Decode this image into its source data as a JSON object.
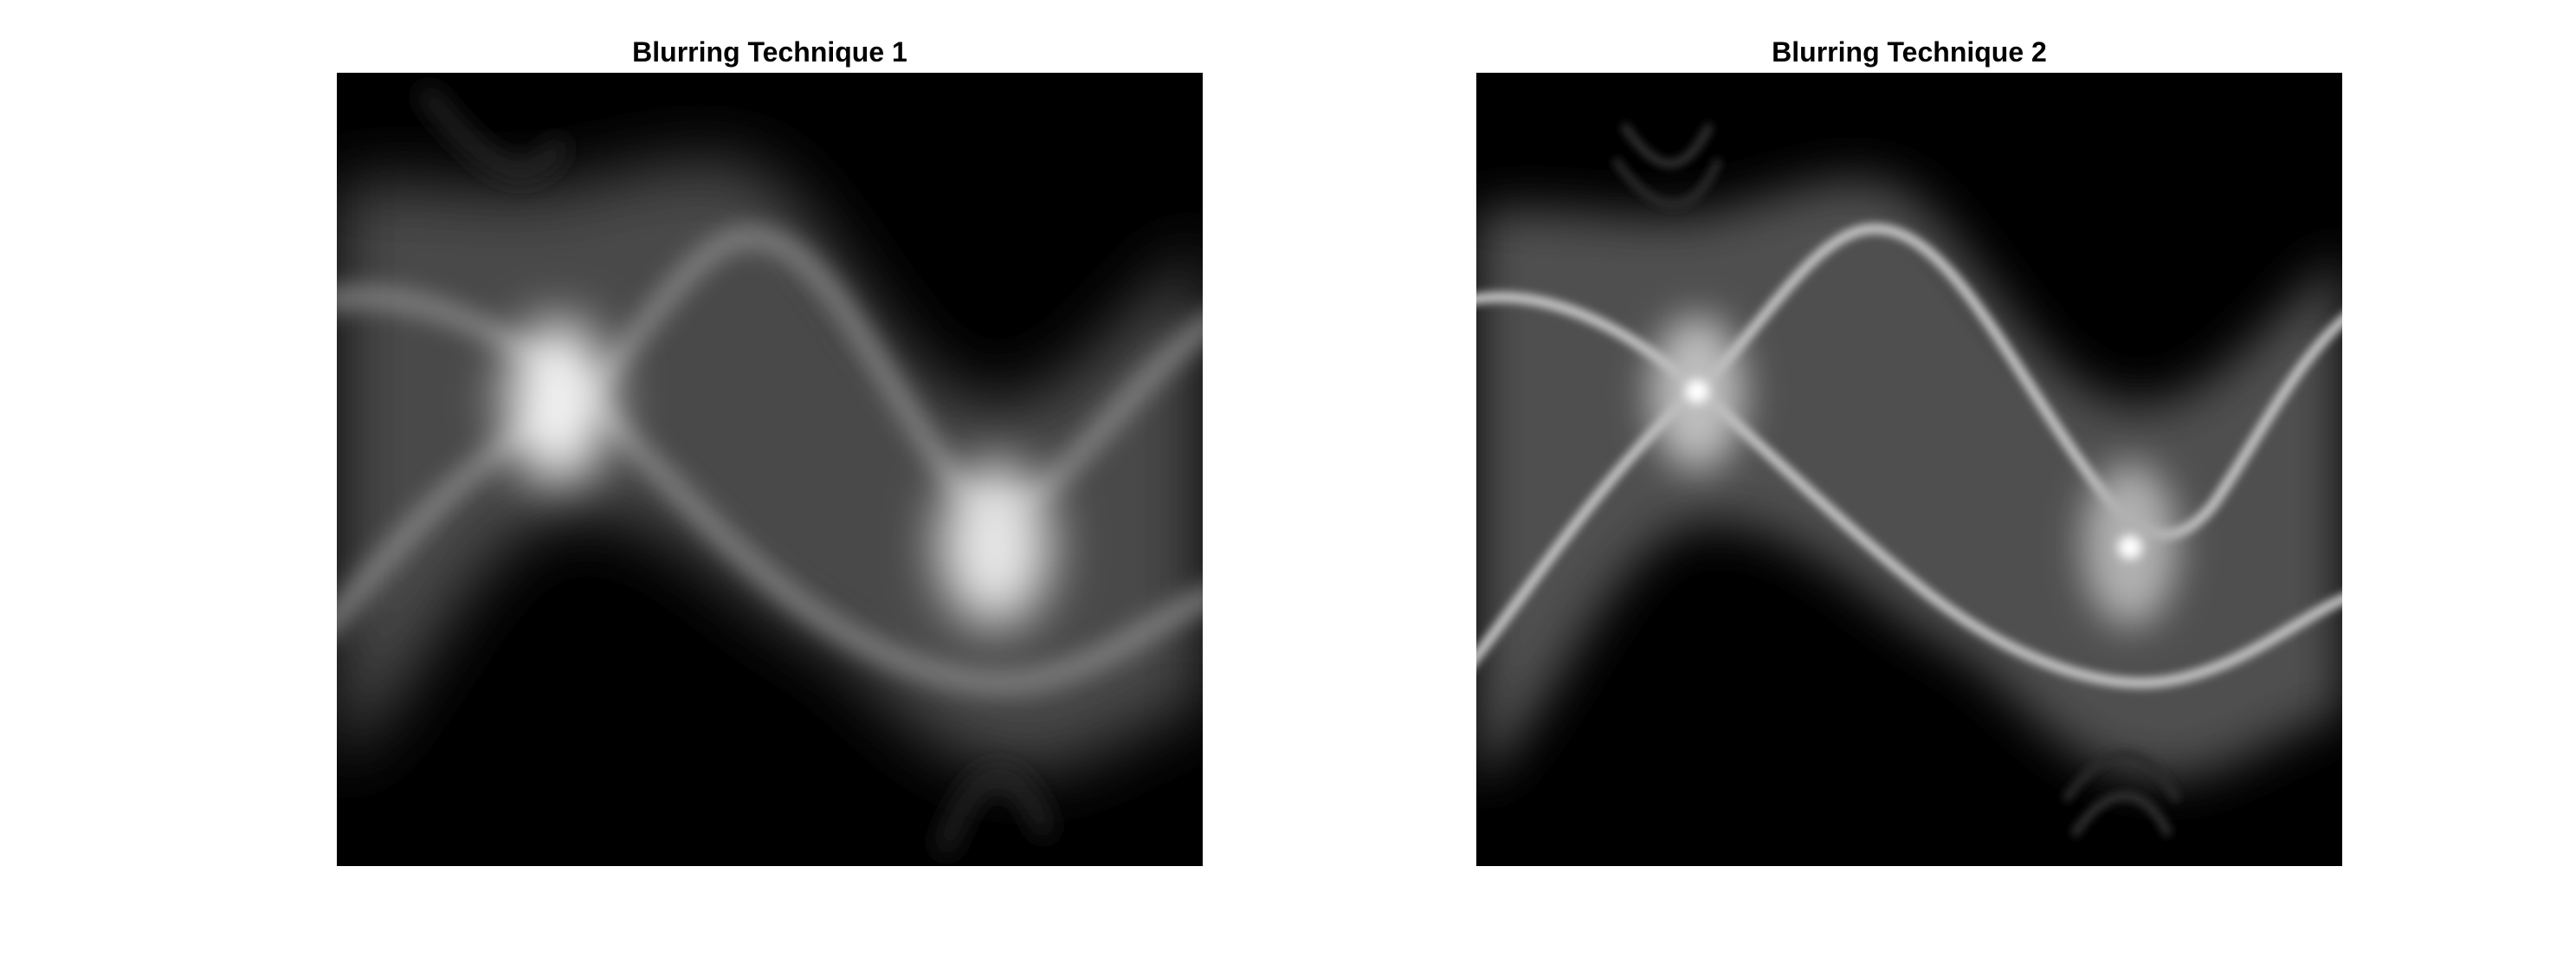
{
  "figure": {
    "panels": [
      {
        "title": "Blurring Technique 1",
        "blur": "heavy",
        "colormap": "gray"
      },
      {
        "title": "Blurring Technique 2",
        "blur": "light",
        "colormap": "gray"
      }
    ]
  },
  "colors": {
    "background": "#ffffff",
    "image_background": "#000000",
    "intensity": "#ffffff"
  }
}
